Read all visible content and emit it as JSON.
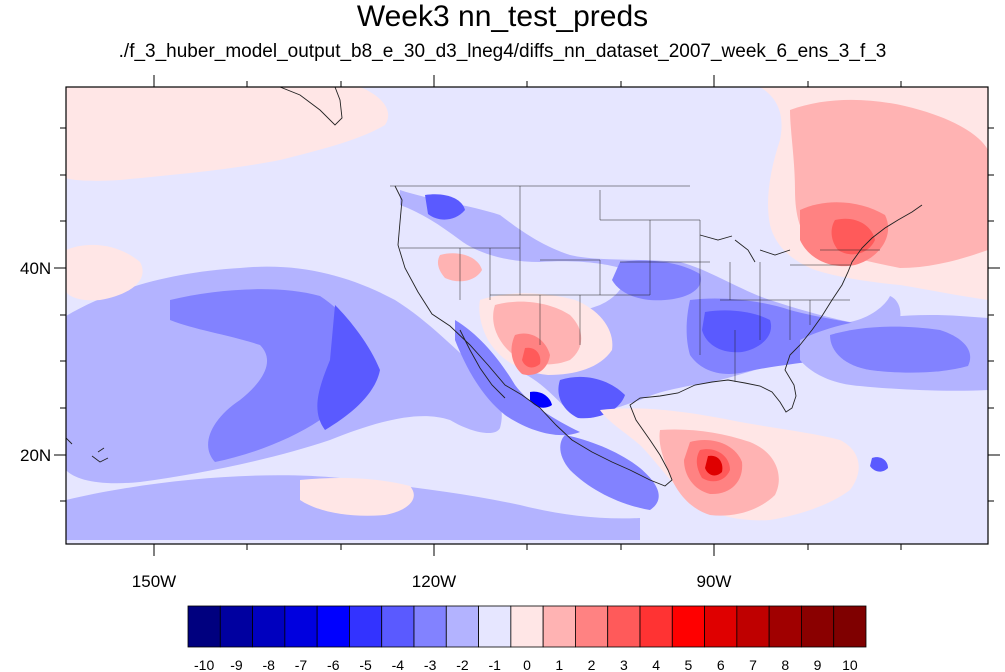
{
  "title": "Week3 nn_test_preds",
  "subtitle": "./f_3_huber_model_output_b8_e_30_d3_lneg4/diffs_nn_dataset_2007_week_6_ens_3_f_3",
  "lat_labels": [
    "40N",
    "20N"
  ],
  "lon_labels": [
    "150W",
    "120W",
    "90W"
  ],
  "colorbar": {
    "labels": [
      "-10",
      "-9",
      "-8",
      "-7",
      "-6",
      "-5",
      "-4",
      "-3",
      "-2",
      "-1",
      "0",
      "1",
      "2",
      "3",
      "4",
      "5",
      "6",
      "7",
      "8",
      "9",
      "10"
    ],
    "colors": [
      "#00007f",
      "#0000a0",
      "#0000bf",
      "#0000df",
      "#0000ff",
      "#3333ff",
      "#5a5aff",
      "#8282ff",
      "#b3b3ff",
      "#e6e6ff",
      "#ffe6e6",
      "#ffb3b3",
      "#ff8282",
      "#ff5a5a",
      "#ff3333",
      "#ff0000",
      "#df0000",
      "#bf0000",
      "#a00000",
      "#8a0000",
      "#7f0000"
    ]
  },
  "map_colors": {
    "background": "#e6e6ff",
    "light_blue": "#b3b3ff",
    "mid_blue": "#8282ff",
    "blue": "#5a5aff",
    "dark_blue": "#0000ff",
    "light_red": "#ffe6e6",
    "pink": "#ffb3b3",
    "mid_red": "#ff8282",
    "red": "#ff5a5a",
    "dark_red": "#df0000",
    "coast": "#222222"
  }
}
